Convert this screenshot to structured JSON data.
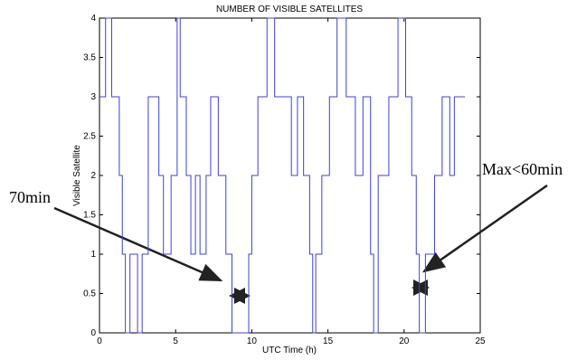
{
  "chart_data": {
    "type": "line",
    "step": true,
    "title": "NUMBER OF VISIBLE SATELLITES",
    "x_label": "UTC Time (h)",
    "y_label": "Visible Satellite",
    "xlim": [
      0,
      25
    ],
    "xticks": [
      0,
      5,
      10,
      15,
      20,
      25
    ],
    "ylim": [
      0,
      4
    ],
    "yticks": [
      0,
      0.5,
      1,
      1.5,
      2,
      2.5,
      3,
      3.5,
      4
    ],
    "series": [
      {
        "color": "#4040d8",
        "x": [
          0,
          0.4,
          0.8,
          1.3,
          1.5,
          1.7,
          2.0,
          2.5,
          2.8,
          3.2,
          3.9,
          4.2,
          4.7,
          5.1,
          5.3,
          5.7,
          6.0,
          6.3,
          6.6,
          7.0,
          7.3,
          7.8,
          8.3,
          8.7,
          9.8,
          10.0,
          10.4,
          11.0,
          11.5,
          12.0,
          12.6,
          13.0,
          13.4,
          13.8,
          14.0,
          14.2,
          14.6,
          15.1,
          15.6,
          16.2,
          16.8,
          17.3,
          17.8,
          18.0,
          18.3,
          19.0,
          19.6,
          20.1,
          20.5,
          20.8,
          21.0,
          21.4,
          22.0,
          22.5,
          23.0,
          23.3,
          24.0
        ],
        "values": [
          3,
          4,
          3,
          2,
          1,
          0,
          1,
          0,
          1,
          3,
          2,
          1,
          2,
          4,
          3,
          2,
          1,
          2,
          1,
          2,
          3,
          2,
          1,
          0,
          1,
          2,
          3,
          4,
          3,
          3,
          2,
          3,
          2,
          1,
          0,
          1,
          2,
          3,
          4,
          3,
          2,
          3,
          1,
          0,
          2,
          3,
          4,
          3,
          2,
          1,
          0,
          1,
          2,
          3,
          2,
          3,
          3
        ]
      }
    ],
    "annotations": [
      "70min",
      "Max<60min"
    ]
  }
}
